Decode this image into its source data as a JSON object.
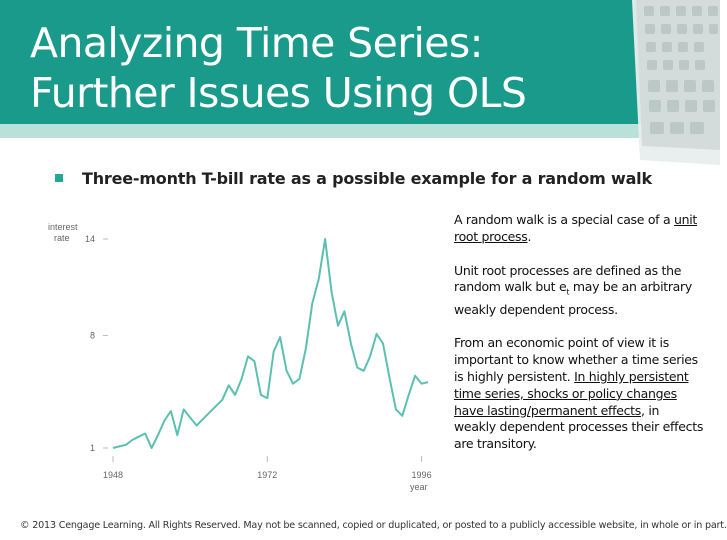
{
  "slide": {
    "title_line1": "Analyzing Time Series:",
    "title_line2": "Further Issues Using OLS",
    "bullet": "Three-month T-bill rate as a possible example for a random walk",
    "notes": {
      "p1_prefix": "A random walk is a special case of a ",
      "p1_link": "unit root process",
      "p1_suffix": ".",
      "p2_prefix": "Unit root processes are defined as the random walk but e",
      "p2_sub": "t",
      "p2_suffix": " may be an arbitrary weakly dependent process.",
      "p3_prefix": "From an economic point of view it is important to know whether a time series is highly persistent. ",
      "p3_link": "In highly persistent time series, shocks or policy changes have lasting/permanent effects",
      "p3_suffix": ", in weakly dependent processes their effects are transitory."
    },
    "footer": "© 2013 Cengage Learning. All Rights Reserved. May not be scanned, copied or duplicated, or posted to a publicly accessible website, in whole or in part.",
    "colors": {
      "header": "#1a9a8a",
      "strip": "#b9e0d9",
      "accent": "#2aa493",
      "line": "#5cbfb2"
    }
  },
  "chart_data": {
    "type": "line",
    "title": "",
    "ylabel_line1": "interest",
    "ylabel_line2": "rate",
    "xlabel": "year",
    "xticks": [
      1948,
      1972,
      1996
    ],
    "yticks": [
      1,
      8,
      14
    ],
    "xlim": [
      1948,
      1997
    ],
    "ylim": [
      1,
      14
    ],
    "series": [
      {
        "name": "three-month T-bill rate",
        "x": [
          1948,
          1949,
          1950,
          1951,
          1952,
          1953,
          1954,
          1955,
          1956,
          1957,
          1958,
          1959,
          1960,
          1961,
          1962,
          1963,
          1964,
          1965,
          1966,
          1967,
          1968,
          1969,
          1970,
          1971,
          1972,
          1973,
          1974,
          1975,
          1976,
          1977,
          1978,
          1979,
          1980,
          1981,
          1982,
          1983,
          1984,
          1985,
          1986,
          1987,
          1988,
          1989,
          1990,
          1991,
          1992,
          1993,
          1994,
          1995,
          1996,
          1997
        ],
        "y": [
          1.0,
          1.1,
          1.2,
          1.5,
          1.7,
          1.9,
          1.0,
          1.8,
          2.7,
          3.3,
          1.8,
          3.4,
          2.9,
          2.4,
          2.8,
          3.2,
          3.6,
          4.0,
          4.9,
          4.3,
          5.3,
          6.7,
          6.4,
          4.3,
          4.1,
          7.0,
          7.9,
          5.8,
          5.0,
          5.3,
          7.2,
          10.0,
          11.5,
          14.0,
          10.7,
          8.6,
          9.5,
          7.5,
          6.0,
          5.8,
          6.7,
          8.1,
          7.5,
          5.4,
          3.4,
          3.0,
          4.3,
          5.5,
          5.0,
          5.1
        ]
      }
    ]
  }
}
